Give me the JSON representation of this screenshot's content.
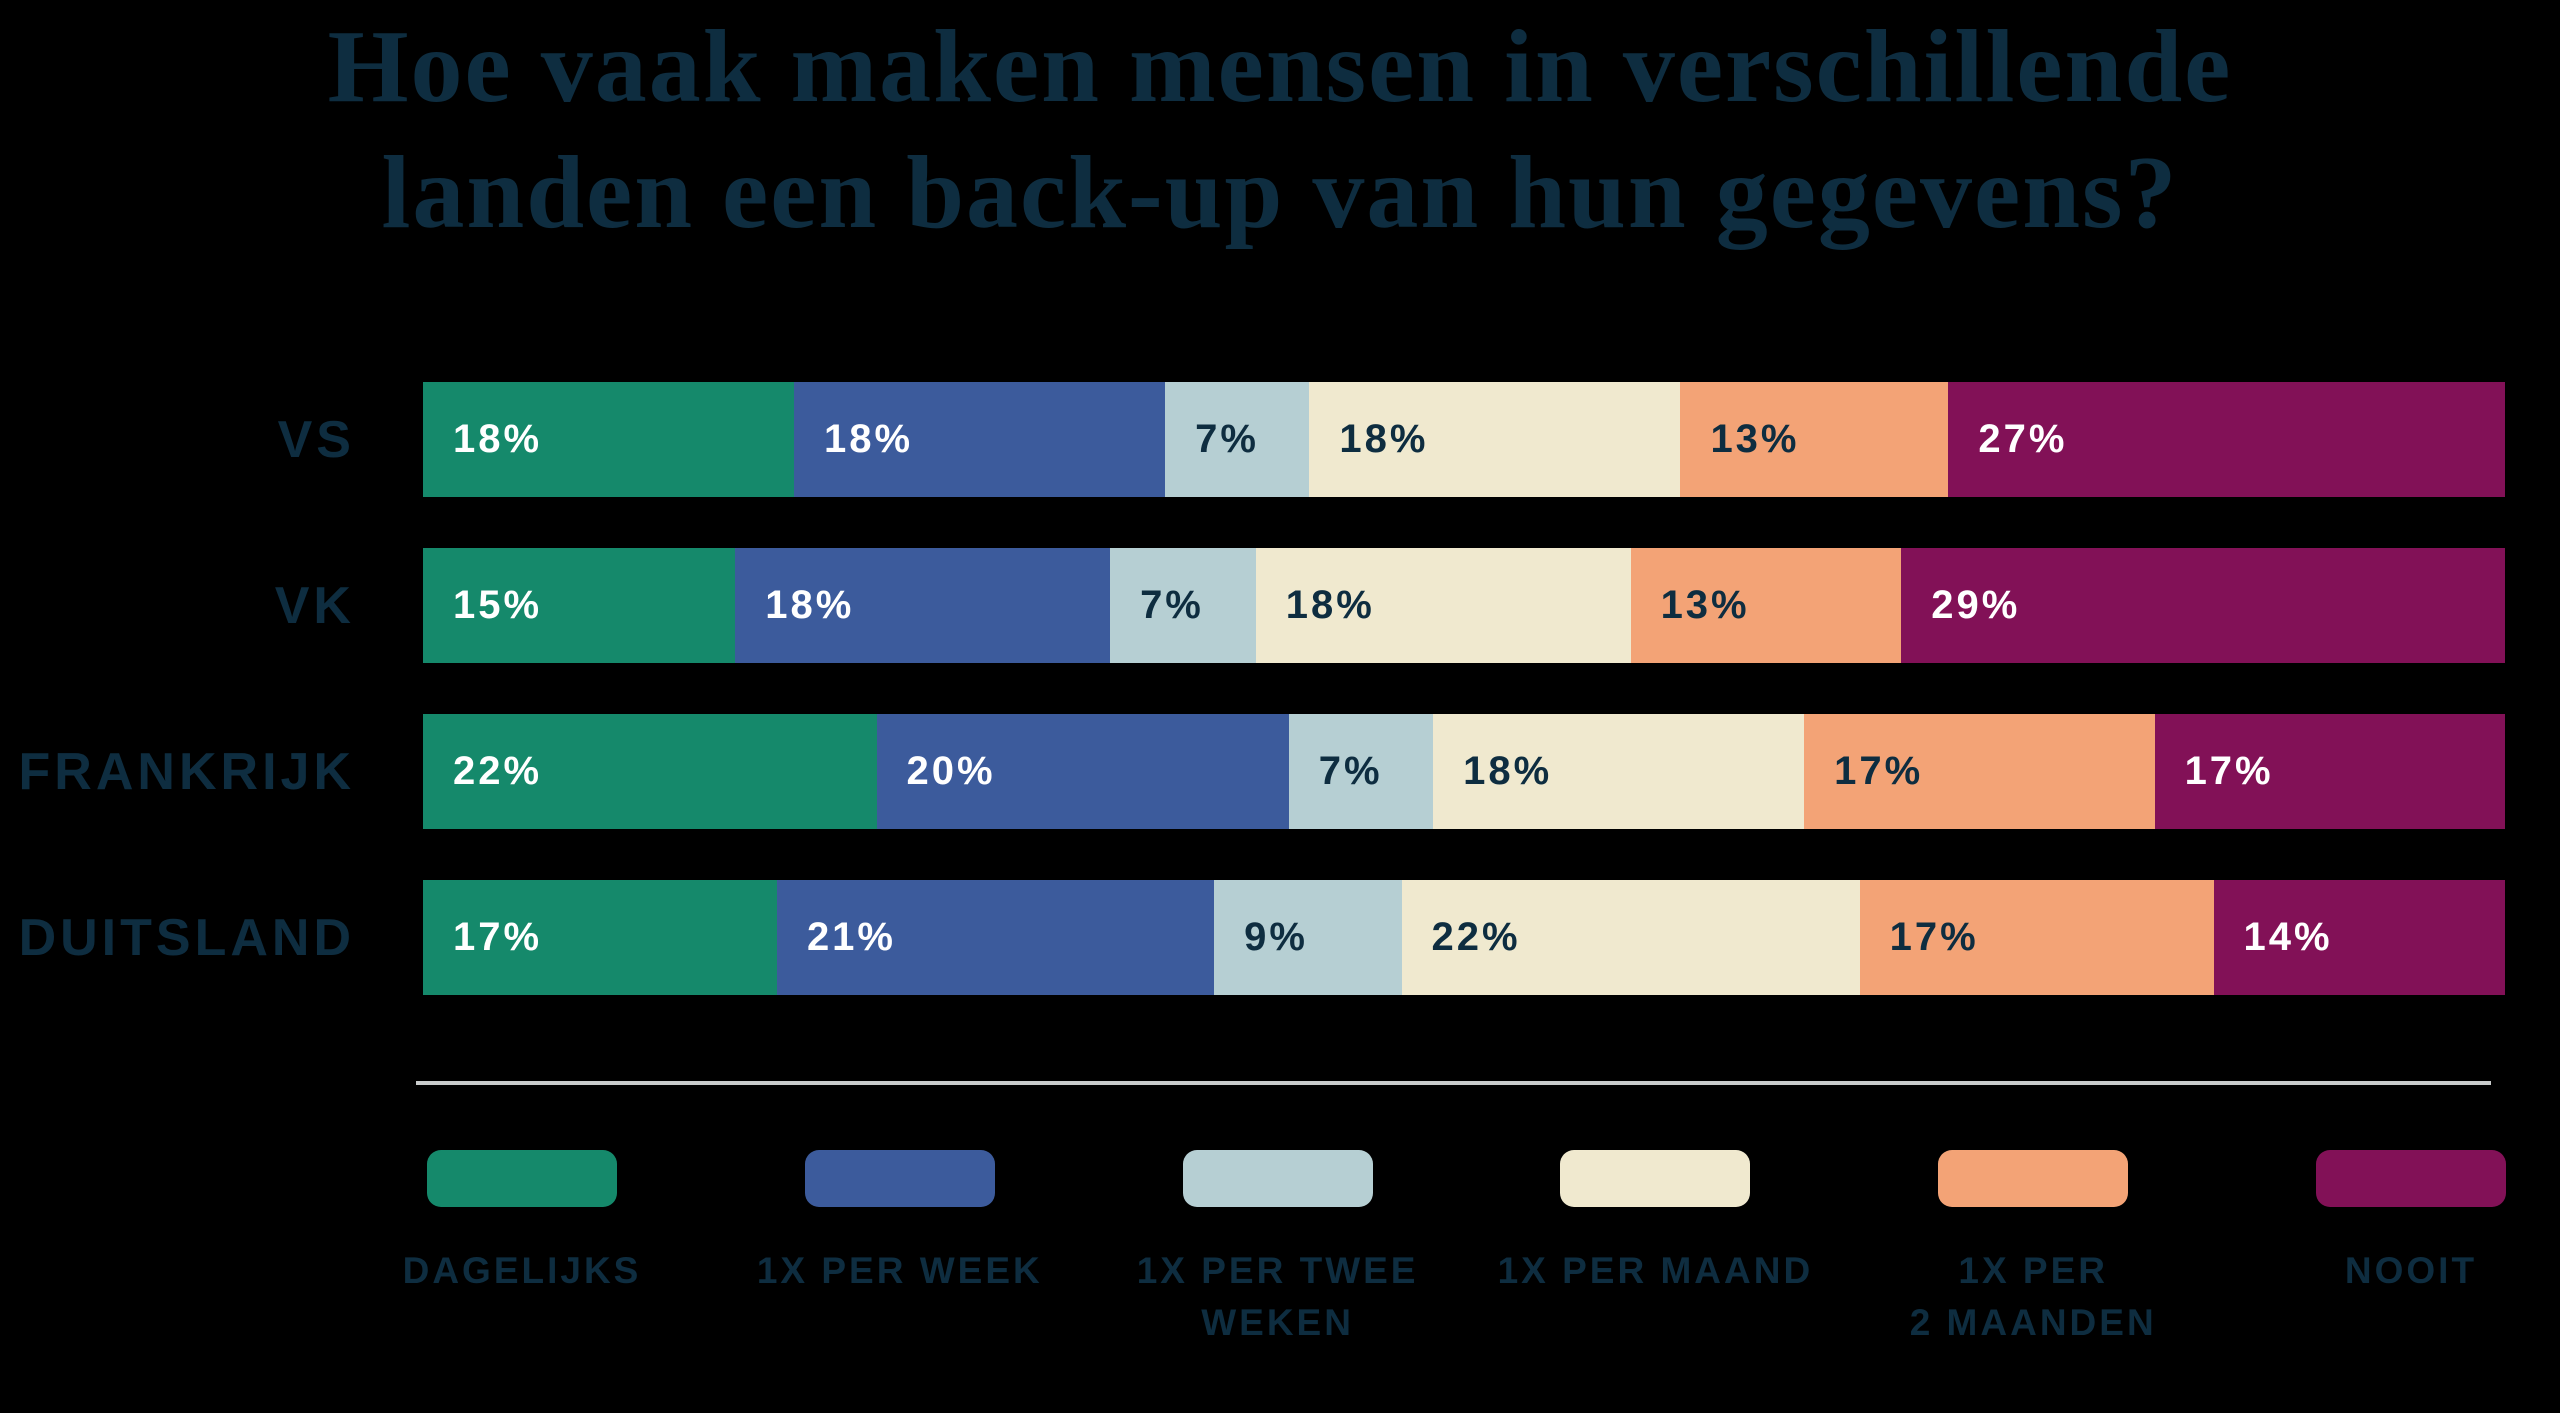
{
  "background_color": "#000000",
  "text_color": "#0e2d40",
  "divider_color": "#c9cccc",
  "title": {
    "line1": "Hoe vaak maken mensen in verschillende",
    "line2": "landen een back-up van hun gegevens?",
    "full": "Hoe vaak maken mensen in verschillende landen een back-up van hun gegevens?"
  },
  "chart_data": {
    "type": "bar",
    "stacked": true,
    "orientation": "horizontal",
    "value_suffix": "%",
    "legend_position": "bottom",
    "categories": [
      "VS",
      "VK",
      "FRANKRIJK",
      "DUITSLAND"
    ],
    "series": [
      {
        "name": "DAGELIJKS",
        "color": "#15896b",
        "text_color": "#ffffff",
        "values": [
          18,
          15,
          22,
          17
        ]
      },
      {
        "name": "1X PER WEEK",
        "color": "#3c5b9c",
        "text_color": "#ffffff",
        "values": [
          18,
          18,
          20,
          21
        ]
      },
      {
        "name": "1X PER TWEE WEKEN",
        "color": "#b6cfd3",
        "text_color": "#0e2d40",
        "values": [
          7,
          7,
          7,
          9
        ]
      },
      {
        "name": "1X PER MAAND",
        "color": "#f0e9cf",
        "text_color": "#0e2d40",
        "values": [
          18,
          18,
          18,
          22
        ]
      },
      {
        "name": "1X PER 2 MAANDEN",
        "color": "#f3a376",
        "text_color": "#0e2d40",
        "values": [
          13,
          13,
          17,
          17
        ]
      },
      {
        "name": "NOOIT",
        "color": "#821157",
        "text_color": "#ffffff",
        "values": [
          27,
          29,
          17,
          14
        ]
      }
    ]
  },
  "legend": {
    "items": [
      {
        "color": "#15896b",
        "lines": [
          "DAGELIJKS"
        ]
      },
      {
        "color": "#3c5b9c",
        "lines": [
          "1X PER WEEK"
        ]
      },
      {
        "color": "#b6cfd3",
        "lines": [
          "1X PER TWEE",
          "WEKEN"
        ]
      },
      {
        "color": "#f0e9cf",
        "lines": [
          "1X PER MAAND"
        ]
      },
      {
        "color": "#f3a376",
        "lines": [
          "1X PER",
          "2 MAANDEN"
        ]
      },
      {
        "color": "#821157",
        "lines": [
          "NOOIT"
        ]
      }
    ]
  }
}
